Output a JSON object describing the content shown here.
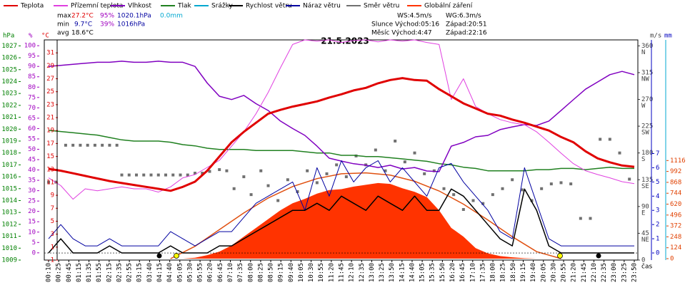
{
  "chart_data": {
    "type": "weather",
    "title": "21.5.2023",
    "time_label": "čas",
    "stats": [
      {
        "label": "max",
        "temp": "27.2°C",
        "hum": "95%",
        "press": "1020.1hPa",
        "rain": "0.0mm"
      },
      {
        "label": "min",
        "temp": "9.7°C",
        "hum": "39%",
        "press": "1016hPa"
      },
      {
        "label": "avg",
        "temp": "18.6°C"
      }
    ],
    "info": {
      "ws": "WS:4.5m/s",
      "wg": "WG:6.3m/s",
      "sun": "Slunce Východ:05:16",
      "sunset": "Západ:20:51",
      "moon": "Měsíc Východ:4:47",
      "moonset": "Západ:22:16"
    },
    "axes": [
      {
        "id": "press",
        "label": "hPa",
        "color": "#008000",
        "lim": [
          1009,
          1027.5
        ],
        "ticks": [
          1009,
          1010,
          1011,
          1012,
          1013,
          1014,
          1015,
          1016,
          1017,
          1018,
          1019,
          1020,
          1021,
          1022,
          1023,
          1024,
          1025,
          1026,
          1027
        ]
      },
      {
        "id": "hum",
        "label": "%",
        "color": "#a000c0",
        "lim": [
          -3.5,
          102.8
        ],
        "ticks": [
          0,
          5,
          10,
          15,
          20,
          25,
          30,
          35,
          40,
          45,
          50,
          55,
          60,
          65,
          70,
          75,
          80,
          85,
          90,
          95,
          100
        ]
      },
      {
        "id": "temp",
        "label": "°C",
        "color": "#e00000",
        "lim": [
          -1,
          33
        ],
        "ticks": [
          -1,
          1,
          3,
          5,
          7,
          9,
          11,
          13,
          15,
          17,
          19,
          21,
          23,
          25,
          27,
          29,
          31
        ]
      },
      {
        "id": "dir",
        "label": "m/s",
        "color": "#404040",
        "lim": [
          0,
          370
        ],
        "ticks": [
          0,
          45,
          90,
          135,
          180,
          225,
          270,
          315,
          360
        ],
        "tick_names": [
          null,
          "NE",
          "E",
          "SE",
          "S",
          "SW",
          "W",
          "NW",
          "N"
        ]
      },
      {
        "id": "wind",
        "label": "mm",
        "color": "#0000c0",
        "lim": [
          -0.5,
          15
        ],
        "ticks": [
          0,
          1,
          2,
          3,
          4,
          5,
          6,
          7
        ]
      },
      {
        "id": "rad",
        "color": "#e04000",
        "lim": [
          -16,
          2488
        ],
        "ticks": [
          0,
          124,
          248,
          372,
          496,
          620,
          744,
          868,
          992,
          1116
        ]
      }
    ],
    "categories": [
      "00:10",
      "00:25",
      "00:45",
      "01:15",
      "01:35",
      "01:55",
      "02:15",
      "02:35",
      "02:55",
      "03:15",
      "03:40",
      "04:15",
      "04:40",
      "05:05",
      "05:30",
      "05:55",
      "06:20",
      "06:45",
      "07:10",
      "07:35",
      "08:00",
      "08:25",
      "08:50",
      "09:15",
      "09:40",
      "10:05",
      "10:30",
      "10:55",
      "11:20",
      "11:45",
      "12:10",
      "12:35",
      "13:00",
      "13:25",
      "13:50",
      "14:15",
      "14:40",
      "15:05",
      "15:35",
      "15:50",
      "16:20",
      "16:45",
      "17:10",
      "17:35",
      "18:00",
      "18:25",
      "18:50",
      "19:15",
      "19:40",
      "20:05",
      "20:30",
      "20:55",
      "21:20",
      "21:45",
      "22:10",
      "22:35",
      "23:00",
      "23:25",
      "23:50"
    ],
    "xlim": [
      0,
      24
    ],
    "x": [
      0,
      0.5,
      1,
      1.5,
      2,
      2.5,
      3,
      3.5,
      4,
      4.5,
      5,
      5.5,
      6,
      6.5,
      7,
      7.5,
      8,
      8.5,
      9,
      9.5,
      10,
      10.5,
      11,
      11.5,
      12,
      12.5,
      13,
      13.5,
      14,
      14.5,
      15,
      15.5,
      16,
      16.5,
      17,
      17.5,
      18,
      18.5,
      19,
      19.5,
      20,
      20.5,
      21,
      21.5,
      22,
      22.5,
      23,
      23.5,
      24
    ],
    "series": [
      {
        "name": "Teplota",
        "color": "#e00000",
        "axis": "temp",
        "kind": "line",
        "width": 3,
        "values": [
          13.1,
          12.8,
          12.4,
          12.0,
          11.6,
          11.2,
          10.9,
          10.6,
          10.3,
          10.0,
          9.7,
          10.3,
          11.1,
          12.8,
          15.0,
          17.2,
          18.8,
          20.2,
          21.6,
          22.2,
          22.7,
          23.1,
          23.5,
          24.1,
          24.6,
          25.2,
          25.6,
          26.3,
          26.8,
          27.1,
          26.8,
          26.7,
          25.4,
          24.3,
          23.2,
          22.4,
          21.6,
          21.3,
          20.7,
          20.2,
          19.6,
          19.0,
          18.0,
          17.2,
          15.8,
          14.7,
          14.1,
          13.6,
          13.4
        ]
      },
      {
        "name": "Přízemní teplota",
        "color": "#e040e0",
        "axis": "temp",
        "kind": "line",
        "width": 1,
        "values": [
          11.7,
          10.5,
          8.4,
          10.0,
          9.7,
          10.0,
          10.3,
          10.0,
          10.0,
          9.5,
          10.3,
          11.7,
          12.2,
          13.3,
          14.4,
          16.6,
          18.8,
          21.6,
          24.9,
          28.7,
          32.3,
          33.0,
          32.8,
          33.0,
          32.6,
          32.9,
          33.0,
          32.7,
          33.0,
          32.8,
          33.0,
          32.6,
          32.3,
          23.8,
          27.0,
          22.7,
          21.6,
          20.7,
          20.2,
          19.9,
          18.8,
          17.2,
          15.5,
          13.9,
          12.8,
          12.2,
          11.7,
          11.1,
          10.8
        ]
      },
      {
        "name": "Vlhkost",
        "color": "#8000c0",
        "axis": "hum",
        "kind": "line",
        "width": 1.5,
        "values": [
          90,
          90.5,
          91,
          91.5,
          92,
          92,
          92.5,
          92,
          92,
          92.5,
          92,
          92,
          90,
          82,
          75.6,
          74,
          76,
          72,
          68.7,
          63.6,
          60,
          56.7,
          51.5,
          45.7,
          44.3,
          43,
          42.3,
          41.2,
          42.3,
          40.5,
          41.2,
          39.5,
          39.2,
          51.5,
          53.3,
          56,
          56.7,
          59.5,
          60.8,
          61.9,
          61.5,
          63.6,
          68.7,
          73.9,
          79,
          82.5,
          86,
          87.6,
          86
        ]
      },
      {
        "name": "Tlak",
        "color": "#208020",
        "axis": "press",
        "kind": "line",
        "width": 1.5,
        "values": [
          1019.9,
          1019.8,
          1019.7,
          1019.6,
          1019.5,
          1019.3,
          1019.1,
          1019.0,
          1019.0,
          1019.0,
          1018.9,
          1018.7,
          1018.6,
          1018.4,
          1018.3,
          1018.3,
          1018.3,
          1018.2,
          1018.2,
          1018.2,
          1018.2,
          1018.1,
          1018.0,
          1018.0,
          1017.8,
          1017.8,
          1017.7,
          1017.7,
          1017.6,
          1017.5,
          1017.4,
          1017.3,
          1017.1,
          1017.0,
          1016.8,
          1016.7,
          1016.5,
          1016.5,
          1016.5,
          1016.5,
          1016.6,
          1016.6,
          1016.7,
          1016.7,
          1016.6,
          1016.7,
          1016.8,
          1016.7,
          1016.7
        ]
      },
      {
        "name": "Srážky",
        "color": "#00a8d0",
        "axis": "wind",
        "kind": "bars",
        "x": [],
        "values": []
      },
      {
        "name": "Rychlost větru",
        "color": "#000000",
        "axis": "wind",
        "kind": "line",
        "width": 1.5,
        "values": [
          0,
          1,
          0,
          0,
          0,
          0.5,
          0,
          0,
          0,
          0,
          0.5,
          0,
          0,
          0,
          0.5,
          0.5,
          1,
          1.5,
          2,
          2.5,
          3,
          3,
          3.5,
          3,
          4,
          3.5,
          3,
          4,
          3.5,
          3,
          4,
          3,
          3,
          4.5,
          4,
          3,
          2,
          1,
          0.5,
          4.5,
          3,
          0.5,
          0,
          0,
          0,
          0,
          0,
          0,
          0
        ]
      },
      {
        "name": "Náraz větru",
        "color": "#0000a0",
        "axis": "wind",
        "kind": "line",
        "width": 1,
        "values": [
          1,
          2,
          1,
          0.5,
          0.5,
          1,
          0.5,
          0.5,
          0.5,
          0.5,
          1.5,
          1,
          0.5,
          1,
          1.5,
          1.5,
          2.5,
          3.5,
          4,
          4.5,
          5,
          3,
          6,
          4,
          6.5,
          5,
          6,
          6.5,
          5,
          6,
          5,
          4,
          6,
          6.3,
          5,
          4,
          3,
          1.5,
          1,
          6,
          3.5,
          1,
          0.5,
          0.5,
          0.5,
          0.5,
          0.5,
          0.5,
          0.5
        ]
      },
      {
        "name": "Směr větru",
        "color": "#707070",
        "axis": "dir",
        "kind": "points",
        "x": [
          0,
          0.3,
          0.7,
          1.0,
          1.3,
          1.6,
          1.9,
          2.2,
          2.5,
          2.8,
          3.0,
          3.3,
          3.6,
          3.9,
          4.2,
          4.5,
          4.8,
          5.1,
          5.4,
          5.7,
          6.0,
          6.3,
          6.6,
          7.0,
          7.3,
          7.6,
          8.0,
          8.3,
          8.7,
          9.0,
          9.4,
          9.8,
          10.2,
          10.6,
          11.0,
          11.4,
          11.8,
          12.2,
          12.6,
          13.0,
          13.4,
          13.8,
          14.2,
          14.6,
          15.0,
          15.4,
          15.8,
          16.2,
          16.6,
          17.0,
          17.4,
          17.8,
          18.2,
          18.6,
          19.0,
          19.4,
          19.8,
          20.2,
          20.6,
          21.0,
          21.4,
          21.8,
          22.2,
          22.6,
          23.0,
          23.4,
          23.8
        ],
        "values": [
          131,
          131,
          193,
          193,
          193,
          193,
          193,
          193,
          193,
          193,
          143,
          143,
          143,
          143,
          143,
          143,
          143,
          143,
          143,
          143,
          146,
          146,
          149,
          152,
          150,
          120,
          140,
          110,
          150,
          125,
          100,
          135,
          115,
          150,
          130,
          145,
          160,
          140,
          175,
          160,
          185,
          150,
          200,
          165,
          180,
          145,
          150,
          120,
          110,
          85,
          100,
          95,
          110,
          120,
          135,
          118,
          100,
          120,
          128,
          130,
          128,
          70,
          70,
          203,
          203,
          180,
          136
        ]
      },
      {
        "name": "Globální záření",
        "color": "#ff3300",
        "axis": "rad",
        "kind": "area",
        "x": [
          5.5,
          6,
          6.5,
          7,
          7.5,
          8,
          8.5,
          9,
          9.5,
          10,
          10.5,
          11,
          11.5,
          12,
          12.5,
          13,
          13.5,
          14,
          14.5,
          15,
          15.5,
          16,
          16.5,
          17,
          17.5,
          18,
          18.5,
          19,
          19.5,
          20
        ],
        "values": [
          0,
          10,
          40,
          80,
          150,
          250,
          350,
          450,
          550,
          630,
          680,
          740,
          780,
          790,
          820,
          840,
          860,
          850,
          800,
          760,
          700,
          550,
          350,
          250,
          120,
          60,
          30,
          15,
          5,
          0
        ]
      }
    ],
    "theoretical_radiation": {
      "color": "#e05010",
      "axis": "rad",
      "x": [
        5,
        6,
        7,
        8,
        9,
        10,
        11,
        12,
        13,
        14,
        15,
        16,
        17,
        18,
        19,
        20,
        21
      ],
      "values": [
        0,
        140,
        330,
        520,
        690,
        820,
        910,
        965,
        976,
        950,
        880,
        770,
        620,
        440,
        250,
        80,
        0
      ]
    }
  }
}
